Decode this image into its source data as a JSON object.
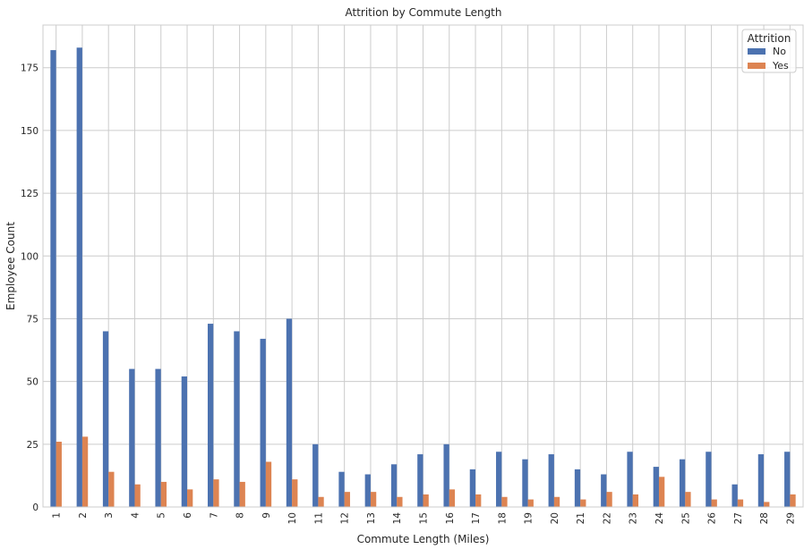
{
  "chart_data": {
    "type": "bar",
    "title": "Attrition by Commute Length",
    "xlabel": "Commute Length (Miles)",
    "ylabel": "Employee Count",
    "ylim": [
      0,
      192
    ],
    "yticks": [
      0,
      25,
      50,
      75,
      100,
      125,
      150,
      175
    ],
    "grid": true,
    "legend_placement": "top-right",
    "legend_title": "Attrition",
    "categories": [
      "1",
      "2",
      "3",
      "4",
      "5",
      "6",
      "7",
      "8",
      "9",
      "10",
      "11",
      "12",
      "13",
      "14",
      "15",
      "16",
      "17",
      "18",
      "19",
      "20",
      "21",
      "22",
      "23",
      "24",
      "25",
      "26",
      "27",
      "28",
      "29"
    ],
    "series": [
      {
        "name": "No",
        "color": "#4c72b0",
        "values": [
          182,
          183,
          70,
          55,
          55,
          52,
          73,
          70,
          67,
          75,
          25,
          14,
          13,
          17,
          21,
          25,
          15,
          22,
          19,
          21,
          15,
          13,
          22,
          16,
          19,
          22,
          9,
          21,
          22
        ]
      },
      {
        "name": "Yes",
        "color": "#dd8452",
        "values": [
          26,
          28,
          14,
          9,
          10,
          7,
          11,
          10,
          18,
          11,
          4,
          6,
          6,
          4,
          5,
          7,
          5,
          4,
          3,
          4,
          3,
          6,
          5,
          12,
          6,
          3,
          3,
          2,
          5
        ]
      }
    ]
  }
}
